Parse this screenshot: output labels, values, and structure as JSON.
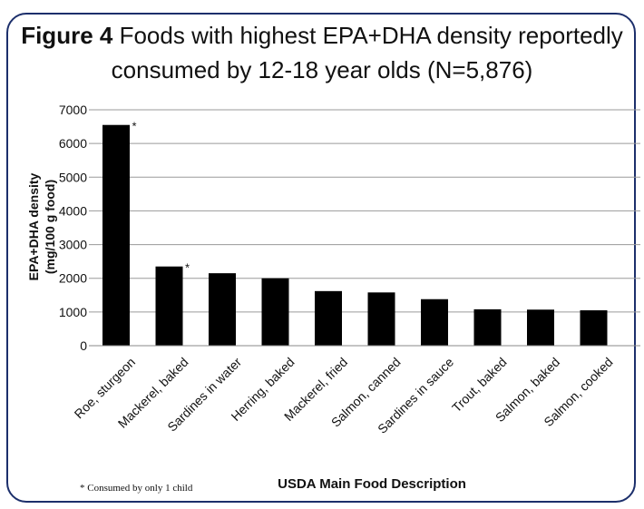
{
  "title_lead": "Figure 4",
  "title_line1": "Foods with highest EPA+DHA density reportedly",
  "title_line2": "consumed by 12-18 year olds (N=5,876)",
  "footnote": "* Consumed by only 1 child",
  "chart_data": {
    "type": "bar",
    "xlabel": "USDA Main Food Description",
    "ylabel_line1": "EPA+DHA density",
    "ylabel_line2": "(mg/100 g food)",
    "ylim": [
      0,
      7000
    ],
    "yticks": [
      0,
      1000,
      2000,
      3000,
      4000,
      5000,
      6000,
      7000
    ],
    "grid": true,
    "bar_color": "#000000",
    "categories": [
      "Roe, sturgeon",
      "Mackerel, baked",
      "Sardines in water",
      "Herring, baked",
      "Mackerel, fried",
      "Salmon, canned",
      "Sardines in sauce",
      "Trout, baked",
      "Salmon, baked",
      "Salmon, cooked"
    ],
    "values": [
      6550,
      2350,
      2150,
      2000,
      1620,
      1580,
      1380,
      1080,
      1070,
      1050
    ],
    "markers": [
      "*",
      "*",
      "",
      "",
      "",
      "",
      "",
      "",
      "",
      ""
    ]
  }
}
